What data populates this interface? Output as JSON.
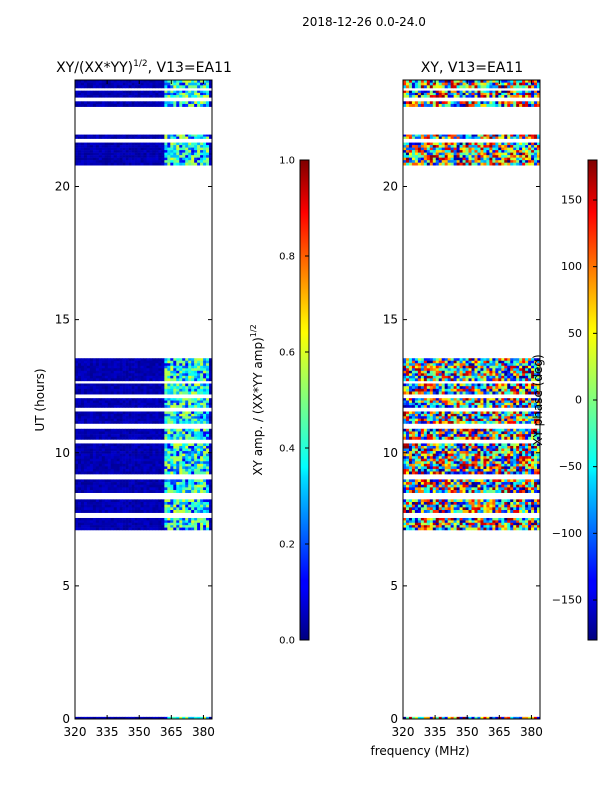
{
  "figure_title": "2018-12-26 0.0-24.0",
  "xlabel_shared": "frequency (MHz)",
  "chart_data": [
    {
      "type": "heatmap",
      "title_main": "XY/(XX*YY)",
      "title_sup": "1/2",
      "title_tail": ", V13=EA11",
      "xlabel": "",
      "ylabel": "UT (hours)",
      "xlim": [
        320,
        384
      ],
      "ylim": [
        0,
        24
      ],
      "xticks": [
        320,
        335,
        350,
        365,
        380
      ],
      "yticks": [
        0,
        5,
        10,
        15,
        20
      ],
      "colorbar": {
        "label_main": "XY amp. / (XX*YY amp)",
        "label_sup": "1/2",
        "range": [
          0.0,
          1.0
        ],
        "ticks": [
          "0.0",
          "0.2",
          "0.4",
          "0.6",
          "0.8",
          "1.0"
        ],
        "colormap": "jet"
      },
      "data_blocks": [
        {
          "ut": [
            0.0,
            0.08
          ],
          "level": "low"
        },
        {
          "ut": [
            7.1,
            7.55
          ],
          "level": "mixed"
        },
        {
          "ut": [
            7.75,
            8.25
          ],
          "level": "mixed"
        },
        {
          "ut": [
            8.5,
            9.0
          ],
          "level": "mixed"
        },
        {
          "ut": [
            9.2,
            10.35
          ],
          "level": "mixed"
        },
        {
          "ut": [
            10.5,
            10.9
          ],
          "level": "mixed"
        },
        {
          "ut": [
            11.1,
            11.55
          ],
          "level": "mixed"
        },
        {
          "ut": [
            11.7,
            12.05
          ],
          "level": "mixed"
        },
        {
          "ut": [
            12.2,
            12.6
          ],
          "level": "mixed"
        },
        {
          "ut": [
            12.7,
            13.55
          ],
          "level": "mixed"
        },
        {
          "ut": [
            20.8,
            21.65
          ],
          "level": "mixed"
        },
        {
          "ut": [
            21.8,
            21.95
          ],
          "level": "mixed"
        },
        {
          "ut": [
            23.0,
            23.2
          ],
          "level": "mixed"
        },
        {
          "ut": [
            23.35,
            23.6
          ],
          "level": "mixed"
        },
        {
          "ut": [
            23.7,
            24.0
          ],
          "level": "mixed"
        }
      ]
    },
    {
      "type": "heatmap",
      "title_main": "XY, V13=EA11",
      "title_sup": "",
      "title_tail": "",
      "xlabel": "frequency (MHz)",
      "ylabel": "",
      "xlim": [
        320,
        384
      ],
      "ylim": [
        0,
        24
      ],
      "xticks": [
        320,
        335,
        350,
        365,
        380
      ],
      "yticks": [
        0,
        5,
        10,
        15,
        20
      ],
      "colorbar": {
        "label_main": "XY phase (deg)",
        "label_sup": "",
        "range": [
          -180,
          180
        ],
        "ticks": [
          "−150",
          "−100",
          "−50",
          "0",
          "50",
          "100",
          "150"
        ],
        "colormap": "jet"
      },
      "data_blocks": [
        {
          "ut": [
            0.0,
            0.08
          ],
          "level": "random"
        },
        {
          "ut": [
            7.1,
            7.55
          ],
          "level": "random"
        },
        {
          "ut": [
            7.75,
            8.25
          ],
          "level": "random"
        },
        {
          "ut": [
            8.5,
            9.0
          ],
          "level": "random"
        },
        {
          "ut": [
            9.2,
            10.35
          ],
          "level": "random"
        },
        {
          "ut": [
            10.5,
            10.9
          ],
          "level": "random"
        },
        {
          "ut": [
            11.1,
            11.55
          ],
          "level": "random"
        },
        {
          "ut": [
            11.7,
            12.05
          ],
          "level": "random"
        },
        {
          "ut": [
            12.2,
            12.6
          ],
          "level": "random"
        },
        {
          "ut": [
            12.7,
            13.55
          ],
          "level": "random"
        },
        {
          "ut": [
            20.8,
            21.65
          ],
          "level": "random"
        },
        {
          "ut": [
            21.8,
            21.95
          ],
          "level": "random"
        },
        {
          "ut": [
            23.0,
            23.2
          ],
          "level": "random"
        },
        {
          "ut": [
            23.35,
            23.6
          ],
          "level": "random"
        },
        {
          "ut": [
            23.7,
            24.0
          ],
          "level": "random"
        }
      ]
    }
  ]
}
